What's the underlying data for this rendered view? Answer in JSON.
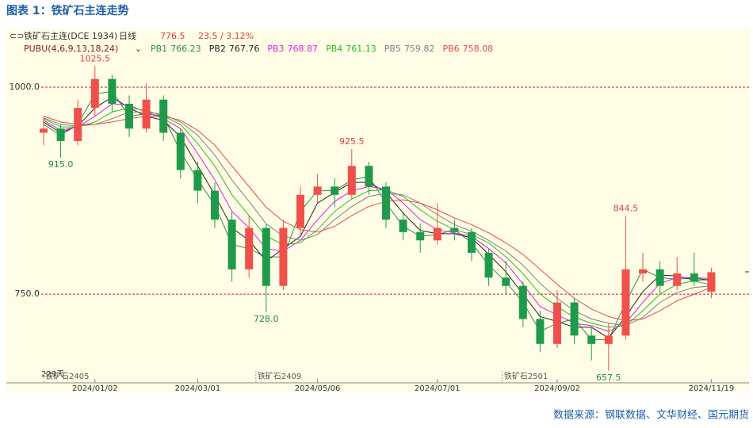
{
  "page_title": "图表 1：铁矿石主连走势",
  "source": "数据来源：钢联数据、文华财经、国元期货",
  "chart_data": {
    "type": "candlestick",
    "symbol": "铁矿石主连(DCE 1934)",
    "period": "日线",
    "change": "23.5 / 3.12%",
    "indicator": "PUBU(4,6,9,13,18,24)",
    "days": "229天",
    "contracts": [
      "铁矿石2405",
      "铁矿石2409",
      "铁矿石2501"
    ],
    "categories": [
      null,
      null,
      null,
      "2024/01/02",
      null,
      null,
      null,
      null,
      null,
      "2024/03/01",
      null,
      null,
      null,
      null,
      null,
      null,
      "2024/05/06",
      null,
      null,
      null,
      null,
      null,
      null,
      "2024/07/01",
      null,
      null,
      null,
      null,
      null,
      null,
      "2024/09/02",
      null,
      null,
      null,
      null,
      null,
      null,
      null,
      null,
      "2024/11/19"
    ],
    "open": [
      945,
      950,
      935,
      975,
      1010,
      980,
      950,
      985,
      945,
      900,
      875,
      840,
      780,
      830,
      760,
      830,
      870,
      880,
      870,
      905,
      880,
      840,
      825,
      815,
      830,
      825,
      800,
      770,
      760,
      720,
      690,
      740,
      700,
      690,
      700,
      775,
      780,
      760,
      775,
      753
    ],
    "high": [
      965,
      955,
      985,
      1025.5,
      1015,
      990,
      1005,
      990,
      950,
      910,
      885,
      850,
      845,
      835,
      840,
      880,
      895,
      890,
      925.5,
      910,
      885,
      850,
      835,
      860,
      840,
      830,
      805,
      790,
      765,
      730,
      755,
      745,
      710,
      715,
      844.5,
      800,
      790,
      795,
      800,
      782
    ],
    "low": [
      930,
      915,
      930,
      965,
      970,
      940,
      945,
      935,
      890,
      860,
      830,
      765,
      770,
      728,
      755,
      820,
      860,
      855,
      865,
      870,
      830,
      815,
      800,
      810,
      815,
      790,
      760,
      750,
      710,
      680,
      685,
      690,
      670,
      657.5,
      695,
      765,
      750,
      755,
      760,
      745
    ],
    "close": [
      950,
      935,
      975,
      1010,
      980,
      950,
      985,
      945,
      900,
      875,
      840,
      780,
      830,
      760,
      830,
      870,
      880,
      870,
      905,
      880,
      840,
      825,
      815,
      830,
      825,
      800,
      770,
      760,
      720,
      690,
      740,
      700,
      690,
      700,
      780,
      780,
      760,
      775,
      765,
      776.5
    ],
    "up_color": "#f0504a",
    "down_color": "#1f9a4a",
    "series": [
      {
        "name": "PB1",
        "color": "#2e8b57",
        "values": [
          955,
          942,
          955,
          992,
          995,
          965,
          968,
          965,
          922,
          888,
          858,
          810,
          805,
          795,
          795,
          850,
          875,
          875,
          888,
          892,
          860,
          832,
          820,
          822,
          828,
          812,
          785,
          765,
          740,
          705,
          715,
          720,
          695,
          695,
          740,
          780,
          770,
          768,
          770,
          766.23
        ]
      },
      {
        "name": "PB2",
        "color": "#222222",
        "values": [
          958,
          945,
          953,
          975,
          988,
          975,
          965,
          960,
          940,
          905,
          870,
          830,
          815,
          790,
          805,
          820,
          860,
          873,
          885,
          885,
          873,
          848,
          827,
          823,
          823,
          818,
          798,
          777,
          750,
          723,
          717,
          710,
          710,
          697,
          723,
          753,
          773,
          772,
          767,
          767.76
        ]
      },
      {
        "name": "PB3",
        "color": "#e020e0",
        "values": [
          960,
          948,
          952,
          965,
          980,
          978,
          970,
          962,
          950,
          920,
          888,
          850,
          830,
          805,
          802,
          815,
          840,
          862,
          875,
          880,
          877,
          860,
          840,
          828,
          824,
          820,
          805,
          788,
          762,
          735,
          725,
          715,
          712,
          705,
          715,
          740,
          763,
          770,
          770,
          768.87
        ]
      },
      {
        "name": "PB4",
        "color": "#22c022",
        "values": [
          962,
          952,
          952,
          958,
          970,
          975,
          972,
          965,
          955,
          932,
          905,
          870,
          845,
          820,
          810,
          812,
          828,
          850,
          865,
          875,
          876,
          868,
          852,
          838,
          828,
          822,
          812,
          795,
          775,
          750,
          735,
          722,
          715,
          710,
          712,
          730,
          750,
          762,
          766,
          761.13
        ]
      },
      {
        "name": "PB5",
        "color": "#808080",
        "values": [
          963,
          955,
          953,
          955,
          962,
          970,
          970,
          967,
          958,
          942,
          918,
          888,
          862,
          835,
          820,
          815,
          822,
          840,
          856,
          868,
          872,
          870,
          860,
          846,
          834,
          826,
          815,
          802,
          785,
          763,
          745,
          730,
          720,
          715,
          712,
          722,
          740,
          752,
          758,
          759.82
        ]
      },
      {
        "name": "PB6",
        "color": "#e84848",
        "values": [
          965,
          958,
          955,
          955,
          958,
          962,
          965,
          965,
          960,
          948,
          930,
          905,
          880,
          855,
          838,
          828,
          825,
          832,
          845,
          856,
          862,
          864,
          860,
          852,
          842,
          834,
          824,
          812,
          798,
          780,
          762,
          745,
          732,
          723,
          718,
          720,
          730,
          742,
          750,
          758.08
        ]
      }
    ],
    "annotations": [
      {
        "value": 1025.5,
        "label": "1025.5"
      },
      {
        "value": 915,
        "label": "915.0"
      },
      {
        "value": 925.5,
        "label": "925.5"
      },
      {
        "value": 728,
        "label": "728.0"
      },
      {
        "value": 844.5,
        "label": "844.5"
      },
      {
        "value": 657.5,
        "label": "657.5"
      }
    ],
    "ylim": [
      641,
      1057
    ],
    "yticks": [
      {
        "value": 750,
        "label": "750.0"
      },
      {
        "value": 1000,
        "label": "1000.0"
      }
    ],
    "grid": true
  }
}
